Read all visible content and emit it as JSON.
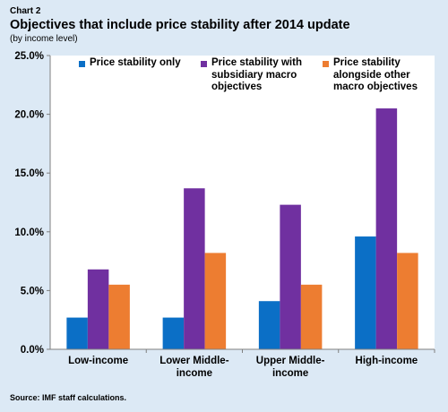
{
  "header": {
    "chart_number": "Chart 2",
    "title": "Objectives that include price stability after 2014 update",
    "subtitle": "(by income level)"
  },
  "footer": {
    "source": "Source: IMF staff calculations."
  },
  "chart_data": {
    "type": "bar",
    "categories": [
      "Low-income",
      "Lower Middle-income",
      "Upper Middle-income",
      "High-income"
    ],
    "category_lines": [
      [
        "Low-income"
      ],
      [
        "Lower Middle-",
        "income"
      ],
      [
        "Upper Middle-",
        "income"
      ],
      [
        "High-income"
      ]
    ],
    "series": [
      {
        "name": "Price stability only",
        "color": "#0b6fc6",
        "values": [
          2.7,
          2.7,
          4.1,
          9.6
        ]
      },
      {
        "name": "Price stability with subsidiary macro objectives",
        "color": "#7030a0",
        "values": [
          6.8,
          13.7,
          12.3,
          20.5
        ]
      },
      {
        "name": "Price stability alongside other macro objectives",
        "color": "#ed7d31",
        "values": [
          5.5,
          8.2,
          5.5,
          8.2
        ]
      }
    ],
    "legend_lines": [
      [
        "Price stability only"
      ],
      [
        "Price stability with",
        "subsidiary macro",
        "objectives"
      ],
      [
        "Price stability",
        "alongside other",
        "macro objectives"
      ]
    ],
    "ylim": [
      0,
      25
    ],
    "yticks": [
      "0.0%",
      "5.0%",
      "10.0%",
      "15.0%",
      "20.0%",
      "25.0%"
    ],
    "xlabel": "",
    "ylabel": "",
    "grid": false,
    "legend": "top"
  }
}
